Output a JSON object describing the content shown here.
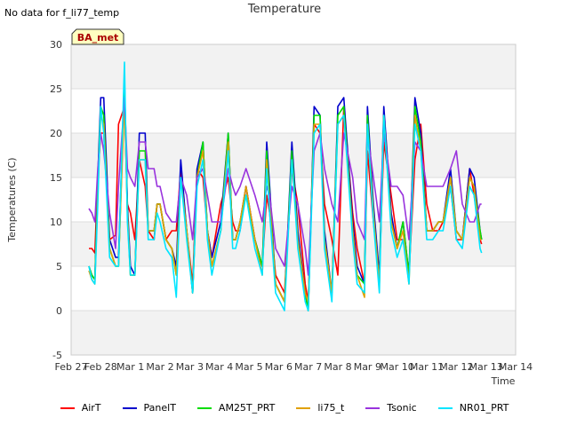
{
  "no_data_text": "No data for f_li77_temp",
  "chart_data": {
    "type": "line",
    "title": "Temperature",
    "xlabel": "Time",
    "ylabel": "Temperatures (C)",
    "ylim": [
      -5,
      30
    ],
    "yticks": [
      -5,
      0,
      5,
      10,
      15,
      20,
      25,
      30
    ],
    "xticks": [
      "Feb 27",
      "Feb 28",
      "Mar 1",
      "Mar 2",
      "Mar 3",
      "Mar 4",
      "Mar 5",
      "Mar 6",
      "Mar 7",
      "Mar 8",
      "Mar 9",
      "Mar 10",
      "Mar 11",
      "Mar 12",
      "Mar 13",
      "Mar 14"
    ],
    "xlim": [
      0,
      15
    ],
    "grid": "horizontal bands",
    "badge": "BA_met",
    "legend_position": "bottom",
    "series": [
      {
        "name": "AirT",
        "color": "#ff0000",
        "x": [
          0.6,
          0.7,
          0.8,
          0.9,
          1.0,
          1.1,
          1.3,
          1.5,
          1.6,
          1.8,
          1.9,
          2.0,
          2.15,
          2.3,
          2.5,
          2.6,
          2.8,
          2.9,
          3.0,
          3.2,
          3.4,
          3.55,
          3.7,
          3.9,
          4.1,
          4.25,
          4.45,
          4.6,
          4.75,
          5.05,
          5.3,
          5.45,
          5.55,
          5.7,
          5.9,
          6.2,
          6.45,
          6.6,
          6.7,
          6.9,
          7.2,
          7.45,
          7.65,
          7.9,
          8.0,
          8.2,
          8.4,
          8.55,
          8.8,
          9.0,
          9.2,
          9.5,
          9.65,
          9.9,
          10.0,
          10.2,
          10.4,
          10.55,
          10.8,
          11.0,
          11.2,
          11.4,
          11.6,
          11.8,
          12.0,
          12.2,
          12.4,
          12.55,
          12.8,
          13.0,
          13.2,
          13.45,
          13.6,
          13.8,
          13.85
        ],
        "y": [
          7,
          7,
          6.5,
          15,
          20,
          20,
          8,
          8.5,
          21,
          23,
          12,
          11,
          8,
          17,
          14,
          9,
          8,
          12,
          12,
          8,
          9,
          9,
          16,
          9,
          3,
          16,
          15,
          9,
          6,
          12,
          15,
          10,
          9,
          9,
          14,
          8,
          5,
          13,
          11,
          4,
          2,
          16,
          12,
          3,
          1,
          21,
          20,
          12,
          8,
          4,
          23,
          11,
          7,
          3,
          18,
          10,
          4,
          19,
          13,
          8,
          8,
          4,
          17,
          21,
          12,
          9,
          9,
          10,
          14,
          8,
          8,
          16,
          13,
          8,
          7.5
        ]
      },
      {
        "name": "PanelT",
        "color": "#0000cc",
        "x": [
          0.6,
          0.7,
          0.8,
          0.9,
          1.0,
          1.1,
          1.3,
          1.5,
          1.6,
          1.8,
          1.9,
          2.0,
          2.15,
          2.3,
          2.5,
          2.6,
          2.8,
          2.9,
          3.0,
          3.2,
          3.4,
          3.55,
          3.7,
          3.9,
          4.1,
          4.25,
          4.45,
          4.6,
          4.75,
          5.05,
          5.3,
          5.45,
          5.55,
          5.7,
          5.9,
          6.2,
          6.45,
          6.6,
          6.7,
          6.9,
          7.2,
          7.45,
          7.65,
          7.9,
          8.0,
          8.2,
          8.4,
          8.55,
          8.8,
          9.0,
          9.2,
          9.5,
          9.65,
          9.9,
          10.0,
          10.2,
          10.4,
          10.55,
          10.8,
          11.0,
          11.2,
          11.4,
          11.6,
          11.8,
          12.0,
          12.2,
          12.4,
          12.55,
          12.8,
          13.0,
          13.2,
          13.45,
          13.6,
          13.8,
          13.85
        ],
        "y": [
          5,
          4,
          3.5,
          15,
          24,
          24,
          8,
          6,
          6,
          26,
          12,
          5,
          4,
          20,
          20,
          9,
          9,
          12,
          12,
          8,
          7,
          5,
          17,
          9,
          2,
          16,
          19,
          9,
          6,
          10,
          20,
          8,
          8,
          10,
          14,
          8,
          5,
          19,
          14,
          3,
          1,
          19,
          9,
          2,
          0,
          23,
          22,
          9,
          2,
          23,
          24,
          10,
          5,
          3,
          23,
          12,
          4,
          23,
          11,
          7,
          10,
          4,
          24,
          20,
          9,
          9,
          10,
          10,
          16,
          9,
          8,
          16,
          15,
          9,
          8
        ]
      },
      {
        "name": "AM25T_PRT",
        "color": "#00dd00",
        "x": [
          0.6,
          0.7,
          0.8,
          0.9,
          1.0,
          1.1,
          1.3,
          1.5,
          1.6,
          1.8,
          1.9,
          2.0,
          2.15,
          2.3,
          2.5,
          2.6,
          2.8,
          2.9,
          3.0,
          3.2,
          3.4,
          3.55,
          3.7,
          3.9,
          4.1,
          4.25,
          4.45,
          4.6,
          4.75,
          5.05,
          5.3,
          5.45,
          5.55,
          5.7,
          5.9,
          6.2,
          6.45,
          6.6,
          6.7,
          6.9,
          7.2,
          7.45,
          7.65,
          7.9,
          8.0,
          8.2,
          8.4,
          8.55,
          8.8,
          9.0,
          9.2,
          9.5,
          9.65,
          9.9,
          10.0,
          10.2,
          10.4,
          10.55,
          10.8,
          11.0,
          11.2,
          11.4,
          11.6,
          11.8,
          12.0,
          12.2,
          12.4,
          12.55,
          12.8,
          13.0,
          13.2,
          13.45,
          13.6,
          13.8,
          13.85
        ],
        "y": [
          5,
          4,
          3.5,
          14,
          23,
          22,
          7,
          5,
          5,
          25,
          11,
          4,
          4,
          18,
          18,
          9,
          9,
          12,
          12,
          8,
          7,
          4,
          15,
          9,
          2,
          15,
          19,
          9,
          5,
          9,
          20,
          8,
          8,
          10,
          13,
          8,
          5,
          18,
          13,
          3,
          1,
          18,
          8,
          2,
          0,
          22,
          22,
          8,
          2,
          22,
          23,
          9,
          4,
          3,
          22,
          11,
          3,
          22,
          10,
          7,
          10,
          4,
          23,
          19,
          9,
          9,
          10,
          10,
          15,
          9,
          8,
          15,
          14,
          9,
          8
        ]
      },
      {
        "name": "li75_t",
        "color": "#e0a000",
        "x": [
          0.6,
          0.7,
          0.8,
          0.9,
          1.0,
          1.1,
          1.3,
          1.5,
          1.6,
          1.8,
          1.9,
          2.0,
          2.15,
          2.3,
          2.5,
          2.6,
          2.8,
          2.9,
          3.0,
          3.2,
          3.4,
          3.55,
          3.7,
          3.9,
          4.1,
          4.25,
          4.45,
          4.6,
          4.75,
          5.05,
          5.3,
          5.45,
          5.55,
          5.7,
          5.9,
          6.2,
          6.45,
          6.6,
          6.7,
          6.9,
          7.2,
          7.45,
          7.65,
          7.9,
          8.0,
          8.2,
          8.4,
          8.55,
          8.8,
          9.0,
          9.2,
          9.5,
          9.65,
          9.9,
          10.0,
          10.2,
          10.4,
          10.55,
          10.8,
          11.0,
          11.2,
          11.4,
          11.6,
          11.8,
          12.0,
          12.2,
          12.4,
          12.55,
          12.8,
          13.0,
          13.2,
          13.45,
          13.6,
          13.8,
          13.85
        ],
        "y": [
          4.5,
          3.5,
          3,
          13,
          22,
          21,
          7,
          5,
          5,
          24,
          11,
          4,
          4,
          17,
          17,
          9,
          9,
          12,
          12,
          8,
          7,
          4,
          15,
          9,
          2,
          15,
          18,
          9,
          5,
          9,
          19,
          8,
          8,
          10,
          14,
          8,
          4,
          17,
          12,
          3,
          1,
          17,
          8,
          2,
          1,
          21,
          21,
          8,
          2,
          21,
          22,
          9,
          4,
          1.5,
          21,
          11,
          3,
          22,
          10,
          7,
          9,
          3,
          22,
          18,
          9,
          9,
          10,
          10,
          15,
          9,
          8,
          15,
          14,
          8,
          8
        ]
      },
      {
        "name": "Tsonic",
        "color": "#9933dd",
        "x": [
          0.6,
          0.7,
          0.8,
          0.9,
          1.0,
          1.1,
          1.3,
          1.5,
          1.6,
          1.8,
          1.9,
          2.0,
          2.15,
          2.3,
          2.5,
          2.6,
          2.8,
          2.9,
          3.0,
          3.2,
          3.4,
          3.55,
          3.7,
          3.9,
          4.1,
          4.25,
          4.45,
          4.6,
          4.75,
          5.05,
          5.3,
          5.45,
          5.55,
          5.7,
          5.9,
          6.2,
          6.45,
          6.6,
          6.7,
          6.9,
          7.2,
          7.45,
          7.65,
          7.9,
          8.0,
          8.2,
          8.4,
          8.55,
          8.8,
          9.0,
          9.2,
          9.5,
          9.65,
          9.9,
          10.0,
          10.2,
          10.4,
          10.55,
          10.8,
          11.0,
          11.2,
          11.4,
          11.6,
          11.8,
          12.0,
          12.2,
          12.4,
          12.55,
          12.8,
          13.0,
          13.2,
          13.45,
          13.6,
          13.8,
          13.85
        ],
        "y": [
          11.5,
          11,
          10,
          16,
          20,
          18,
          11,
          7,
          14,
          24,
          16,
          15,
          14,
          19,
          19,
          16,
          16,
          14,
          14,
          11,
          10,
          10,
          15,
          13,
          8,
          15,
          16,
          13,
          10,
          10,
          16,
          14,
          13,
          14,
          16,
          13,
          10,
          14,
          13,
          7,
          5,
          14,
          12,
          7,
          4,
          18,
          20,
          16,
          12,
          10,
          20,
          15,
          10,
          8,
          20,
          15,
          10,
          20,
          14,
          14,
          13,
          8,
          19,
          18,
          14,
          14,
          14,
          14,
          16,
          18,
          12,
          10,
          10,
          12,
          12
        ]
      },
      {
        "name": "NR01_PRT",
        "color": "#00e5ff",
        "x": [
          0.6,
          0.7,
          0.8,
          0.9,
          1.0,
          1.1,
          1.3,
          1.5,
          1.6,
          1.8,
          1.9,
          2.0,
          2.15,
          2.3,
          2.5,
          2.6,
          2.8,
          2.9,
          3.0,
          3.2,
          3.4,
          3.55,
          3.7,
          3.9,
          4.1,
          4.25,
          4.45,
          4.6,
          4.75,
          5.05,
          5.3,
          5.45,
          5.55,
          5.7,
          5.9,
          6.2,
          6.45,
          6.6,
          6.7,
          6.9,
          7.2,
          7.45,
          7.65,
          7.9,
          8.0,
          8.2,
          8.4,
          8.55,
          8.8,
          9.0,
          9.2,
          9.5,
          9.65,
          9.9,
          10.0,
          10.2,
          10.4,
          10.55,
          10.8,
          11.0,
          11.2,
          11.4,
          11.6,
          11.8,
          12.0,
          12.2,
          12.4,
          12.55,
          12.8,
          13.0,
          13.2,
          13.45,
          13.6,
          13.8,
          13.85
        ],
        "y": [
          5,
          3.5,
          3,
          12,
          23,
          20,
          6,
          5,
          5,
          28,
          10,
          4,
          4,
          17,
          17,
          8,
          8,
          11,
          10,
          7,
          6,
          1.5,
          15,
          8,
          2,
          14,
          17,
          8,
          4,
          9,
          18,
          7,
          7,
          9,
          13,
          7,
          4,
          16,
          11,
          2,
          0,
          17,
          7,
          1,
          0,
          20,
          21,
          7,
          1,
          21,
          22,
          8,
          3,
          2,
          21,
          10,
          2,
          22,
          9,
          6,
          8,
          3,
          21,
          18,
          8,
          8,
          9,
          9,
          14,
          8,
          7,
          14,
          13,
          7,
          6.5
        ]
      }
    ]
  }
}
